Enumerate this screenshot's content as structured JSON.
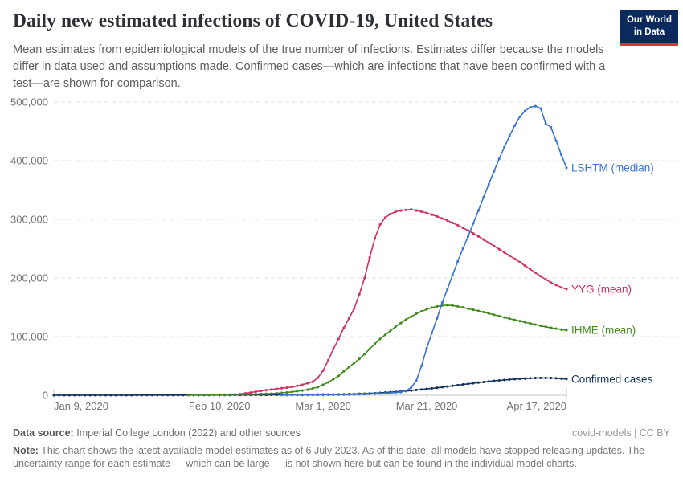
{
  "logo": {
    "line1": "Our World",
    "line2": "in Data"
  },
  "header": {
    "title": "Daily new estimated infections of COVID-19, United States",
    "subtitle": "Mean estimates from epidemiological models of the true number of infections. Estimates differ because the models differ in data used and assumptions made. Confirmed cases—which are infections that have been confirmed with a test—are shown for comparison."
  },
  "chart_data": {
    "type": "line",
    "title": "Daily new estimated infections of COVID-19, United States",
    "legend_position": "line-end-labels",
    "grid": "horizontal-dashed",
    "x_axis": {
      "unit": "date",
      "day_range": [
        0,
        99
      ],
      "ticks": [
        {
          "day": 0,
          "label": "Jan 9, 2020"
        },
        {
          "day": 32,
          "label": "Feb 10, 2020"
        },
        {
          "day": 52,
          "label": "Mar 1, 2020"
        },
        {
          "day": 72,
          "label": "Mar 21, 2020"
        },
        {
          "day": 99,
          "label": "Apr 17, 2020"
        }
      ]
    },
    "y_axis": {
      "range": [
        0,
        500000
      ],
      "ticks": [
        {
          "value": 0,
          "label": "0"
        },
        {
          "value": 100000,
          "label": "100,000"
        },
        {
          "value": 200000,
          "label": "200,000"
        },
        {
          "value": 300000,
          "label": "300,000"
        },
        {
          "value": 400000,
          "label": "400,000"
        },
        {
          "value": 500000,
          "label": "500,000"
        }
      ]
    },
    "series": [
      {
        "name": "LSHTM (median)",
        "color": "#3b73cf",
        "points": [
          [
            44,
            300
          ],
          [
            48,
            450
          ],
          [
            52,
            650
          ],
          [
            55,
            900
          ],
          [
            58,
            1400
          ],
          [
            60,
            1900
          ],
          [
            62,
            2600
          ],
          [
            64,
            3400
          ],
          [
            66,
            4600
          ],
          [
            67,
            5400
          ],
          [
            68,
            7500
          ],
          [
            69,
            13000
          ],
          [
            70,
            25000
          ],
          [
            71,
            50000
          ],
          [
            72,
            80000
          ],
          [
            73,
            106000
          ],
          [
            74,
            131000
          ],
          [
            75,
            158000
          ],
          [
            76,
            181000
          ],
          [
            77,
            205000
          ],
          [
            78,
            228000
          ],
          [
            79,
            250000
          ],
          [
            80,
            271000
          ],
          [
            81,
            293000
          ],
          [
            82,
            315000
          ],
          [
            83,
            338000
          ],
          [
            84,
            360000
          ],
          [
            85,
            382000
          ],
          [
            86,
            403000
          ],
          [
            87,
            423000
          ],
          [
            88,
            442000
          ],
          [
            89,
            460000
          ],
          [
            90,
            475000
          ],
          [
            91,
            485000
          ],
          [
            92,
            491000
          ],
          [
            93,
            493000
          ],
          [
            94,
            489000
          ],
          [
            95,
            463000
          ],
          [
            96,
            457000
          ],
          [
            97,
            434000
          ],
          [
            98,
            410000
          ],
          [
            99,
            388000
          ]
        ]
      },
      {
        "name": "YYG (mean)",
        "color": "#d42e63",
        "points": [
          [
            36,
            2000
          ],
          [
            38,
            4500
          ],
          [
            40,
            7500
          ],
          [
            43,
            11000
          ],
          [
            46,
            14000
          ],
          [
            48,
            18000
          ],
          [
            50,
            23000
          ],
          [
            51,
            30000
          ],
          [
            52,
            42000
          ],
          [
            53,
            60000
          ],
          [
            54,
            79000
          ],
          [
            55,
            96000
          ],
          [
            56,
            115000
          ],
          [
            57,
            131000
          ],
          [
            58,
            148000
          ],
          [
            59,
            172000
          ],
          [
            60,
            200000
          ],
          [
            61,
            235000
          ],
          [
            62,
            268000
          ],
          [
            63,
            291000
          ],
          [
            64,
            303000
          ],
          [
            65,
            309000
          ],
          [
            66,
            313000
          ],
          [
            67,
            315000
          ],
          [
            68,
            316000
          ],
          [
            69,
            317000
          ],
          [
            70,
            315000
          ],
          [
            72,
            311000
          ],
          [
            74,
            305000
          ],
          [
            76,
            298000
          ],
          [
            78,
            290000
          ],
          [
            80,
            281000
          ],
          [
            82,
            271000
          ],
          [
            84,
            260000
          ],
          [
            86,
            249000
          ],
          [
            88,
            238000
          ],
          [
            90,
            227000
          ],
          [
            92,
            215000
          ],
          [
            94,
            203000
          ],
          [
            96,
            192000
          ],
          [
            98,
            184000
          ],
          [
            99,
            181000
          ]
        ]
      },
      {
        "name": "IHME (mean)",
        "color": "#418a1d",
        "points": [
          [
            26,
            400
          ],
          [
            30,
            700
          ],
          [
            34,
            1100
          ],
          [
            38,
            1700
          ],
          [
            42,
            2800
          ],
          [
            45,
            4800
          ],
          [
            47,
            6800
          ],
          [
            49,
            9500
          ],
          [
            51,
            14000
          ],
          [
            53,
            22000
          ],
          [
            55,
            33000
          ],
          [
            56,
            41000
          ],
          [
            57,
            48000
          ],
          [
            58,
            55000
          ],
          [
            59,
            62000
          ],
          [
            60,
            70000
          ],
          [
            61,
            79000
          ],
          [
            62,
            88000
          ],
          [
            63,
            96000
          ],
          [
            64,
            103000
          ],
          [
            65,
            110000
          ],
          [
            66,
            117000
          ],
          [
            67,
            123000
          ],
          [
            68,
            129000
          ],
          [
            69,
            134000
          ],
          [
            70,
            139000
          ],
          [
            71,
            143000
          ],
          [
            72,
            146500
          ],
          [
            73,
            149500
          ],
          [
            74,
            151500
          ],
          [
            75,
            153000
          ],
          [
            76,
            153500
          ],
          [
            77,
            153000
          ],
          [
            78,
            151500
          ],
          [
            79,
            150000
          ],
          [
            80,
            147500
          ],
          [
            82,
            144000
          ],
          [
            84,
            139500
          ],
          [
            86,
            135000
          ],
          [
            88,
            130500
          ],
          [
            90,
            126500
          ],
          [
            92,
            122500
          ],
          [
            94,
            118500
          ],
          [
            96,
            115000
          ],
          [
            98,
            112000
          ],
          [
            99,
            111000
          ]
        ]
      },
      {
        "name": "Confirmed cases",
        "color": "#15335e",
        "points": [
          [
            0,
            100
          ],
          [
            10,
            150
          ],
          [
            20,
            250
          ],
          [
            30,
            350
          ],
          [
            40,
            550
          ],
          [
            45,
            750
          ],
          [
            50,
            1000
          ],
          [
            55,
            1500
          ],
          [
            58,
            2100
          ],
          [
            60,
            2700
          ],
          [
            62,
            3500
          ],
          [
            64,
            4600
          ],
          [
            66,
            5900
          ],
          [
            68,
            7300
          ],
          [
            70,
            9000
          ],
          [
            72,
            10800
          ],
          [
            74,
            12800
          ],
          [
            76,
            15000
          ],
          [
            78,
            17200
          ],
          [
            80,
            19400
          ],
          [
            82,
            21600
          ],
          [
            84,
            23600
          ],
          [
            86,
            25400
          ],
          [
            88,
            26900
          ],
          [
            90,
            28100
          ],
          [
            92,
            29000
          ],
          [
            93,
            29400
          ],
          [
            94,
            29600
          ],
          [
            95,
            29600
          ],
          [
            96,
            29400
          ],
          [
            97,
            29000
          ],
          [
            98,
            28400
          ],
          [
            99,
            27700
          ]
        ]
      }
    ]
  },
  "footer": {
    "data_source_label": "Data source:",
    "data_source_value": "Imperial College London (2022) and other sources",
    "credit": "covid-models | CC BY",
    "note_label": "Note:",
    "note_value": "This chart shows the latest available model estimates as of 6 July 2023. As of this date, all models have stopped releasing updates. The uncertainty range for each estimate — which can be large — is not shown here but can be found in the individual model charts."
  }
}
